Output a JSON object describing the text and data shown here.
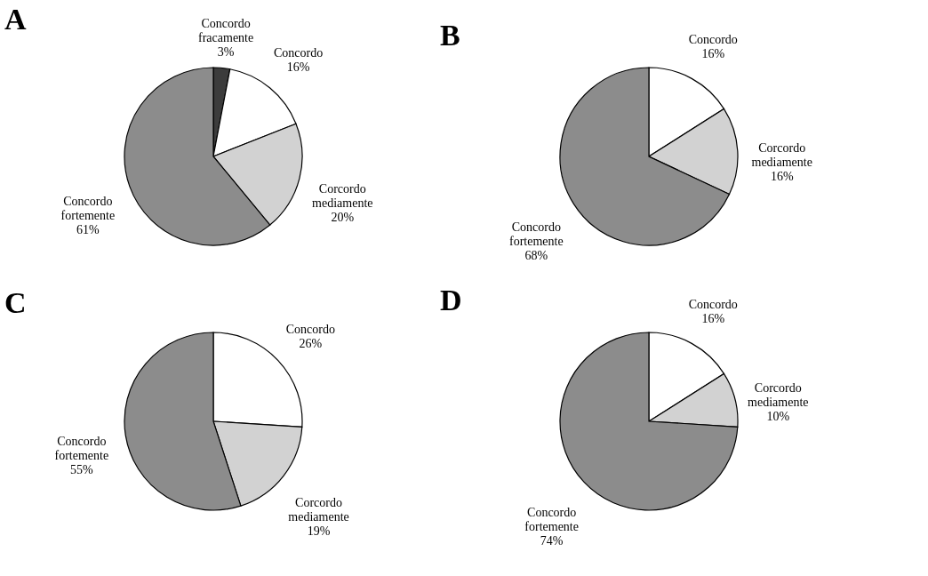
{
  "chart_data": [
    {
      "type": "pie",
      "title": "A",
      "categories": [
        "Concordo  fracamente",
        "Concordo",
        "Corcordo mediamente",
        "Concordo fortemente"
      ],
      "values": [
        3,
        16,
        20,
        61
      ],
      "value_labels": [
        "3%",
        "16%",
        "20%",
        "61%"
      ],
      "colors": [
        "#3c3c3c",
        "#ffffff",
        "#d2d2d2",
        "#8c8c8c"
      ],
      "legend": false
    },
    {
      "type": "pie",
      "title": "B",
      "categories": [
        "Concordo",
        "Corcordo mediamente",
        "Concordo fortemente"
      ],
      "values": [
        16,
        16,
        68
      ],
      "value_labels": [
        "16%",
        "16%",
        "68%"
      ],
      "colors": [
        "#ffffff",
        "#d2d2d2",
        "#8c8c8c"
      ],
      "legend": false
    },
    {
      "type": "pie",
      "title": "C",
      "categories": [
        "Concordo",
        "Corcordo mediamente",
        "Concordo fortemente"
      ],
      "values": [
        26,
        19,
        55
      ],
      "value_labels": [
        "26%",
        "19%",
        "55%"
      ],
      "colors": [
        "#ffffff",
        "#d2d2d2",
        "#8c8c8c"
      ],
      "legend": false
    },
    {
      "type": "pie",
      "title": "D",
      "categories": [
        "Concordo",
        "Corcordo mediamente",
        "Concordo fortemente"
      ],
      "values": [
        16,
        10,
        74
      ],
      "value_labels": [
        "16%",
        "10%",
        "74%"
      ],
      "colors": [
        "#ffffff",
        "#d2d2d2",
        "#8c8c8c"
      ],
      "legend": false
    }
  ]
}
